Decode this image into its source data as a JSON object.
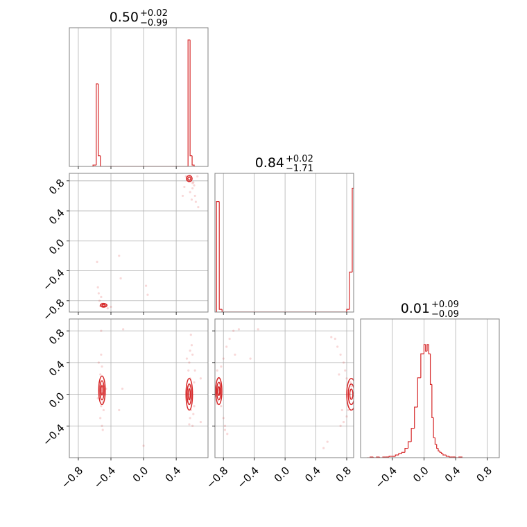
{
  "chart_data": {
    "type": "corner",
    "parameters": [
      "p0",
      "p1",
      "p2"
    ],
    "colors": {
      "series": "#d62728",
      "grid": "#b0b0b0",
      "frame": "#808080"
    },
    "titles": [
      {
        "value": "0.50",
        "plus": "+0.02",
        "minus": "−0.99"
      },
      {
        "value": "0.84",
        "plus": "+0.02",
        "minus": "−1.71"
      },
      {
        "value": "0.01",
        "plus": "+0.09",
        "minus": "−0.09"
      }
    ],
    "tick_labels": {
      "p0": {
        "values": [
          -0.8,
          -0.4,
          0.0,
          0.4
        ],
        "labels": [
          "−0.8",
          "−0.4",
          "0.0",
          "0.4"
        ]
      },
      "p1": {
        "values": [
          -0.8,
          -0.4,
          0.0,
          0.4,
          0.8
        ],
        "labels": [
          "−0.8",
          "−0.4",
          "0.0",
          "0.4",
          "0.8"
        ]
      },
      "p2": {
        "values": [
          -0.4,
          0.0,
          0.4,
          0.8
        ],
        "labels": [
          "−0.4",
          "0.0",
          "0.4",
          "0.8"
        ]
      }
    },
    "ranges": {
      "p0": [
        -0.91,
        0.79
      ],
      "p1": [
        -0.91,
        0.89
      ],
      "p2": [
        -0.8,
        0.95
      ]
    },
    "row1_y_range": [
      -0.95,
      0.9
    ],
    "row2_y_range": [
      -0.8,
      0.95
    ],
    "histograms": [
      {
        "param": "p0",
        "edges": [
          -0.62,
          -0.58,
          -0.555,
          -0.53,
          -0.505,
          -0.48,
          0.545,
          0.57,
          0.595,
          0.62
        ],
        "counts": [
          0.01,
          0.62,
          0.08,
          0.0,
          0.0,
          0.0,
          0.95,
          0.08,
          0.01
        ]
      },
      {
        "param": "p1",
        "edges": [
          -0.89,
          -0.854,
          -0.818,
          -0.782,
          0.8,
          0.836,
          0.872,
          0.908
        ],
        "counts": [
          0.83,
          0.02,
          0.0,
          0.0,
          0.02,
          0.3,
          0.93
        ]
      },
      {
        "param": "p2",
        "edges": [
          -0.72,
          -0.68,
          -0.64,
          -0.6,
          -0.56,
          -0.52,
          -0.48,
          -0.44,
          -0.4,
          -0.36,
          -0.32,
          -0.28,
          -0.24,
          -0.2,
          -0.16,
          -0.12,
          -0.08,
          -0.04,
          0.0,
          0.02,
          0.04,
          0.06,
          0.08,
          0.1,
          0.12,
          0.14,
          0.16,
          0.18,
          0.2,
          0.22,
          0.24,
          0.26,
          0.28,
          0.3,
          0.32,
          0.34,
          0.36,
          0.4,
          0.44,
          0.48
        ],
        "counts": [
          0.0,
          0.005,
          0.0,
          0.005,
          0.0,
          0.005,
          0.005,
          0.01,
          0.01,
          0.02,
          0.03,
          0.04,
          0.07,
          0.12,
          0.22,
          0.38,
          0.6,
          0.78,
          0.85,
          0.8,
          0.85,
          0.78,
          0.55,
          0.3,
          0.15,
          0.1,
          0.07,
          0.05,
          0.04,
          0.03,
          0.02,
          0.02,
          0.01,
          0.01,
          0.005,
          0.005,
          0.005,
          0.0,
          0.005
        ]
      }
    ],
    "scatter_panels": [
      {
        "x": "p0",
        "y": "p1",
        "points": [
          [
            0.54,
            0.82
          ],
          [
            0.55,
            0.81
          ],
          [
            0.56,
            0.85
          ],
          [
            0.58,
            0.8
          ],
          [
            0.53,
            0.83
          ],
          [
            0.57,
            0.87
          ],
          [
            0.6,
            0.77
          ],
          [
            0.52,
            0.86
          ],
          [
            0.62,
            0.74
          ],
          [
            0.5,
            0.72
          ],
          [
            0.57,
            0.65
          ],
          [
            0.6,
            0.7
          ],
          [
            0.63,
            0.6
          ],
          [
            0.64,
            0.52
          ],
          [
            0.67,
            0.45
          ],
          [
            0.48,
            0.6
          ],
          [
            0.59,
            0.55
          ],
          [
            0.61,
            0.78
          ],
          [
            0.66,
            0.86
          ],
          [
            -0.52,
            -0.86
          ],
          [
            -0.5,
            -0.85
          ],
          [
            -0.53,
            -0.87
          ],
          [
            -0.48,
            -0.86
          ],
          [
            -0.51,
            -0.84
          ],
          [
            -0.47,
            -0.87
          ],
          [
            -0.45,
            -0.86
          ],
          [
            -0.54,
            -0.8
          ],
          [
            -0.52,
            -0.75
          ],
          [
            -0.55,
            -0.7
          ],
          [
            -0.56,
            -0.62
          ],
          [
            -0.44,
            -0.9
          ],
          [
            -0.4,
            -0.88
          ],
          [
            -0.57,
            -0.28
          ],
          [
            -0.3,
            -0.2
          ],
          [
            -0.28,
            -0.5
          ],
          [
            0.03,
            -0.6
          ],
          [
            0.05,
            -0.72
          ]
        ]
      },
      {
        "x": "p0",
        "y": "p2",
        "points": [
          [
            -0.52,
            0.05
          ],
          [
            -0.5,
            0.02
          ],
          [
            -0.53,
            -0.02
          ],
          [
            -0.49,
            0.1
          ],
          [
            -0.51,
            0.12
          ],
          [
            -0.54,
            0.15
          ],
          [
            -0.5,
            -0.1
          ],
          [
            -0.52,
            -0.15
          ],
          [
            -0.53,
            0.25
          ],
          [
            -0.51,
            0.35
          ],
          [
            -0.52,
            0.5
          ],
          [
            -0.53,
            -0.3
          ],
          [
            -0.51,
            -0.4
          ],
          [
            -0.49,
            -0.2
          ],
          [
            -0.55,
            0.4
          ],
          [
            -0.47,
            0.0
          ],
          [
            -0.46,
            0.07
          ],
          [
            -0.56,
            -0.05
          ],
          [
            -0.52,
            0.8
          ],
          [
            -0.5,
            -0.45
          ],
          [
            0.55,
            0.0
          ],
          [
            0.56,
            0.1
          ],
          [
            0.54,
            -0.1
          ],
          [
            0.57,
            0.2
          ],
          [
            0.58,
            -0.2
          ],
          [
            0.55,
            0.3
          ],
          [
            0.56,
            0.4
          ],
          [
            0.57,
            -0.3
          ],
          [
            0.6,
            0.5
          ],
          [
            0.59,
            0.62
          ],
          [
            0.58,
            0.75
          ],
          [
            0.6,
            -0.4
          ],
          [
            0.62,
            0.15
          ],
          [
            0.62,
            -0.15
          ],
          [
            0.53,
            0.45
          ],
          [
            0.57,
            0.55
          ],
          [
            0.61,
            -0.25
          ],
          [
            0.63,
            0.3
          ],
          [
            0.56,
            -0.38
          ],
          [
            0.7,
            0.2
          ],
          [
            0.7,
            -0.35
          ],
          [
            -0.25,
            0.82
          ],
          [
            -0.26,
            0.07
          ],
          [
            -0.3,
            -0.2
          ],
          [
            0.0,
            -0.65
          ]
        ]
      },
      {
        "x": "p1",
        "y": "p2",
        "points": [
          [
            -0.86,
            0.05
          ],
          [
            -0.87,
            0.0
          ],
          [
            -0.85,
            0.1
          ],
          [
            -0.87,
            -0.08
          ],
          [
            -0.84,
            0.15
          ],
          [
            -0.86,
            0.2
          ],
          [
            -0.88,
            -0.12
          ],
          [
            -0.83,
            -0.15
          ],
          [
            -0.8,
            -0.3
          ],
          [
            -0.78,
            -0.4
          ],
          [
            -0.75,
            -0.5
          ],
          [
            -0.83,
            0.35
          ],
          [
            -0.8,
            0.45
          ],
          [
            -0.76,
            0.6
          ],
          [
            -0.72,
            0.7
          ],
          [
            -0.67,
            0.8
          ],
          [
            -0.6,
            0.82
          ],
          [
            -0.78,
            -0.45
          ],
          [
            -0.88,
            0.3
          ],
          [
            -0.65,
            0.5
          ],
          [
            0.82,
            0.05
          ],
          [
            0.84,
            0.0
          ],
          [
            0.83,
            -0.1
          ],
          [
            0.85,
            0.15
          ],
          [
            0.8,
            0.2
          ],
          [
            0.78,
            0.3
          ],
          [
            0.76,
            0.4
          ],
          [
            0.72,
            0.5
          ],
          [
            0.68,
            0.6
          ],
          [
            0.65,
            0.7
          ],
          [
            0.82,
            -0.2
          ],
          [
            0.8,
            -0.28
          ],
          [
            0.76,
            -0.35
          ],
          [
            0.72,
            -0.4
          ],
          [
            0.86,
            0.1
          ],
          [
            0.87,
            -0.05
          ],
          [
            0.7,
            0.25
          ],
          [
            0.74,
            -0.2
          ],
          [
            0.6,
            0.72
          ],
          [
            -0.35,
            0.82
          ],
          [
            0.5,
            -0.68
          ],
          [
            0.55,
            -0.6
          ],
          [
            -0.45,
            0.45
          ]
        ]
      }
    ],
    "contours": [
      {
        "panel": "p0-p1",
        "ellipses": [
          {
            "cx": 0.56,
            "cy": 0.83,
            "rx": 0.035,
            "ry": 0.04
          },
          {
            "cx": 0.56,
            "cy": 0.83,
            "rx": 0.018,
            "ry": 0.02
          },
          {
            "cx": -0.49,
            "cy": -0.86,
            "rx": 0.04,
            "ry": 0.025
          },
          {
            "cx": -0.49,
            "cy": -0.86,
            "rx": 0.02,
            "ry": 0.012
          }
        ]
      },
      {
        "panel": "p0-p2",
        "ellipses": [
          {
            "cx": -0.51,
            "cy": 0.05,
            "rx": 0.04,
            "ry": 0.18
          },
          {
            "cx": -0.51,
            "cy": 0.05,
            "rx": 0.026,
            "ry": 0.12
          },
          {
            "cx": -0.51,
            "cy": 0.05,
            "rx": 0.012,
            "ry": 0.06
          },
          {
            "cx": 0.56,
            "cy": 0.0,
            "rx": 0.04,
            "ry": 0.2
          },
          {
            "cx": 0.56,
            "cy": 0.0,
            "rx": 0.026,
            "ry": 0.13
          },
          {
            "cx": 0.56,
            "cy": 0.0,
            "rx": 0.012,
            "ry": 0.07
          }
        ]
      },
      {
        "panel": "p1-p2",
        "ellipses": [
          {
            "cx": -0.86,
            "cy": 0.04,
            "rx": 0.04,
            "ry": 0.17
          },
          {
            "cx": -0.86,
            "cy": 0.04,
            "rx": 0.026,
            "ry": 0.11
          },
          {
            "cx": -0.86,
            "cy": 0.04,
            "rx": 0.012,
            "ry": 0.055
          },
          {
            "cx": 0.86,
            "cy": 0.0,
            "rx": 0.06,
            "ry": 0.2
          },
          {
            "cx": 0.86,
            "cy": 0.0,
            "rx": 0.04,
            "ry": 0.13
          },
          {
            "cx": 0.86,
            "cy": 0.0,
            "rx": 0.02,
            "ry": 0.065
          }
        ]
      }
    ],
    "grid": true
  }
}
